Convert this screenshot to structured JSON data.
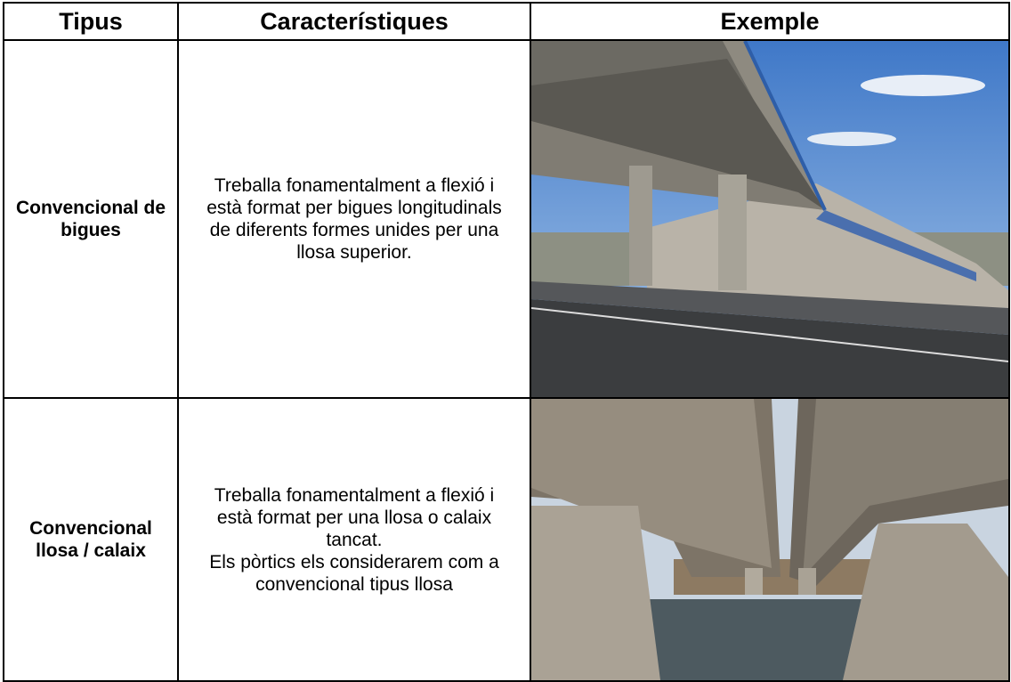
{
  "table": {
    "header": [
      "Tipus",
      "Característiques",
      "Exemple"
    ],
    "rows": [
      {
        "type": "Convencional de bigues",
        "description": [
          "Treballa fonamentalment a flexió i està format per bigues longitudinals de diferents formes unides per una llosa superior."
        ]
      },
      {
        "type": "Convencional llosa / calaix",
        "description": [
          "Treballa fonamentalment a flexió i està format per una llosa o calaix tancat.",
          "Els pòrtics els considerarem com a convencional tipus llosa"
        ]
      }
    ]
  }
}
